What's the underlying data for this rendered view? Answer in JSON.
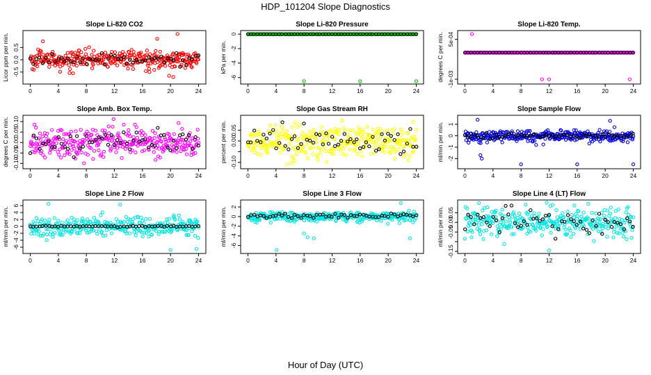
{
  "title": "HDP_101204  Slope Diagnostics",
  "x_caption": "Hour of Day (UTC)",
  "chart_data": [
    {
      "type": "scatter",
      "title": "Slope Li-820 CO2",
      "ylabel": "Licor ppm per min.",
      "xlim": [
        0,
        24
      ],
      "ylim": [
        -0.9,
        1.1
      ],
      "yticks": [
        -0.5,
        0.0,
        0.5
      ],
      "ytick_labels": [
        "-0.5",
        "0.0",
        "0.5"
      ],
      "xticks": [
        0,
        4,
        8,
        12,
        16,
        20,
        24
      ],
      "color": "#ff0000",
      "base_spread": 0.18,
      "overlay_spread": 0.12,
      "overlay_center": 0.0,
      "outliers": [
        {
          "x": 1.8,
          "y": 0.75
        },
        {
          "x": 18.1,
          "y": 0.85
        },
        {
          "x": 21.0,
          "y": 1.05
        },
        {
          "x": 19.8,
          "y": -0.65
        },
        {
          "x": 20.4,
          "y": -0.7
        },
        {
          "x": 6.1,
          "y": -0.55
        }
      ]
    },
    {
      "type": "scatter",
      "title": "Slope Li-820 Pressure",
      "ylabel": "kPa per min.",
      "xlim": [
        0,
        24
      ],
      "ylim": [
        -6.6,
        0.2
      ],
      "yticks": [
        0,
        -2,
        -4,
        -6
      ],
      "ytick_labels": [
        "0",
        "-2",
        "-4",
        "-6"
      ],
      "xticks": [
        0,
        4,
        8,
        12,
        16,
        20,
        24
      ],
      "color": "#00cc00",
      "base_spread": 0.0,
      "overlay_spread": 0.0,
      "overlay_center": 0.0,
      "outliers": [
        {
          "x": 8.0,
          "y": -6.5
        },
        {
          "x": 16.0,
          "y": -6.5
        },
        {
          "x": 24.0,
          "y": -6.5
        }
      ]
    },
    {
      "type": "scatter",
      "title": "Slope Li-820 Temp.",
      "ylabel": "degrees C per min.",
      "xlim": [
        0,
        24
      ],
      "ylim": [
        -0.0011,
        0.00075
      ],
      "yticks": [
        0.0005,
        -0.001
      ],
      "ytick_labels": [
        "5e-04",
        "-1e-03"
      ],
      "xticks": [
        0,
        4,
        8,
        12,
        16,
        20,
        24
      ],
      "color": "#ff00ff",
      "base_spread": 0.0,
      "overlay_spread": 0.0,
      "overlay_center": 0.0,
      "outliers": [
        {
          "x": 1.0,
          "y": 0.0007
        },
        {
          "x": 11.0,
          "y": -0.001
        },
        {
          "x": 12.0,
          "y": -0.001
        },
        {
          "x": 23.5,
          "y": -0.001
        }
      ]
    },
    {
      "type": "scatter",
      "title": "Slope Amb. Box Temp.",
      "ylabel": "degrees C per min.",
      "xlim": [
        0,
        24
      ],
      "ylim": [
        -0.115,
        0.12
      ],
      "yticks": [
        -0.1,
        -0.05,
        0.0,
        0.05,
        0.1
      ],
      "ytick_labels": [
        "-0.10",
        "-0.05",
        "0.00",
        "0.05",
        "0.10"
      ],
      "xticks": [
        0,
        4,
        8,
        12,
        16,
        20,
        24
      ],
      "color": "#ff00ff",
      "base_spread": 0.035,
      "overlay_spread": 0.028,
      "overlay_center": 0.0,
      "outliers": []
    },
    {
      "type": "scatter",
      "title": "Slope Gas Stream RH",
      "ylabel": "percent per min.",
      "xlim": [
        0,
        24
      ],
      "ylim": [
        -0.12,
        0.11
      ],
      "yticks": [
        -0.1,
        -0.05,
        0.0,
        0.05
      ],
      "ytick_labels": [
        "-0.10",
        "",
        "0.00",
        "0.05"
      ],
      "xticks": [
        0,
        4,
        8,
        12,
        16,
        20,
        24
      ],
      "color": "#ffff00",
      "base_spread": 0.035,
      "overlay_spread": 0.035,
      "overlay_center": 0.0,
      "outliers": []
    },
    {
      "type": "scatter",
      "title": "Slope Sample Flow",
      "ylabel": "ml/min per min.",
      "xlim": [
        0,
        24
      ],
      "ylim": [
        -2.7,
        1.6
      ],
      "yticks": [
        -2,
        -1,
        0,
        1
      ],
      "ytick_labels": [
        "-2",
        "-1",
        "0",
        "1"
      ],
      "xticks": [
        0,
        4,
        8,
        12,
        16,
        20,
        24
      ],
      "color": "#0000dd",
      "base_spread": 0.25,
      "overlay_spread": 0.12,
      "overlay_center": 0.0,
      "outliers": [
        {
          "x": 2.2,
          "y": -1.7
        },
        {
          "x": 2.4,
          "y": -2.0
        },
        {
          "x": 8.0,
          "y": -2.5
        },
        {
          "x": 16.0,
          "y": -2.5
        },
        {
          "x": 24.0,
          "y": -2.5
        },
        {
          "x": 1.8,
          "y": 1.4
        },
        {
          "x": 20.7,
          "y": 1.3
        }
      ]
    },
    {
      "type": "scatter",
      "title": "Slope Line 2 Flow",
      "ylabel": "ml/min per min.",
      "xlim": [
        0,
        24
      ],
      "ylim": [
        -7.2,
        7.0
      ],
      "yticks": [
        -6,
        -4,
        -2,
        0,
        2,
        4,
        6
      ],
      "ytick_labels": [
        "-6",
        "-4",
        "-2",
        "0",
        "2",
        "4",
        "6"
      ],
      "xticks": [
        0,
        4,
        8,
        12,
        16,
        20,
        24
      ],
      "color": "#00e5e5",
      "base_spread": 1.4,
      "overlay_spread": 0.1,
      "overlay_center": 0.0,
      "outliers": [
        {
          "x": 2.6,
          "y": 6.5
        },
        {
          "x": 12.8,
          "y": 6.3
        },
        {
          "x": 20.0,
          "y": -6.8
        },
        {
          "x": 23.7,
          "y": -6.5
        }
      ]
    },
    {
      "type": "scatter",
      "title": "Slope Line 3 Flow",
      "ylabel": "ml/min per min.",
      "xlim": [
        0,
        24
      ],
      "ylim": [
        -7.2,
        3.0
      ],
      "yticks": [
        -6,
        -4,
        -2,
        0,
        2
      ],
      "ytick_labels": [
        "-6",
        "-4",
        "-2",
        "0",
        "2"
      ],
      "xticks": [
        0,
        4,
        8,
        12,
        16,
        20,
        24
      ],
      "color": "#00e5e5",
      "base_spread": 0.5,
      "overlay_spread": 0.25,
      "overlay_center": 0.2,
      "outliers": [
        {
          "x": 4.1,
          "y": -6.9
        },
        {
          "x": 8.0,
          "y": -3.5
        },
        {
          "x": 8.5,
          "y": -4.3
        },
        {
          "x": 9.4,
          "y": -4.5
        },
        {
          "x": 23.1,
          "y": -4.5
        },
        {
          "x": 21.8,
          "y": 2.8
        }
      ]
    },
    {
      "type": "scatter",
      "title": "Slope Line 4 (LT) Flow",
      "ylabel": "ml/min per min.",
      "xlim": [
        0,
        24
      ],
      "ylim": [
        -0.15,
        0.105
      ],
      "yticks": [
        -0.15,
        -0.1,
        -0.05,
        0.0,
        0.05
      ],
      "ytick_labels": [
        "-0.15",
        "",
        "-0.05",
        "0.00",
        "0.05"
      ],
      "xticks": [
        0,
        4,
        8,
        12,
        16,
        20,
        24
      ],
      "color": "#00e5e5",
      "base_spread": 0.035,
      "overlay_spread": 0.035,
      "overlay_center": 0.0,
      "outliers": [
        {
          "x": 12.0,
          "y": -0.145
        },
        {
          "x": 2.0,
          "y": 0.1
        }
      ]
    }
  ]
}
